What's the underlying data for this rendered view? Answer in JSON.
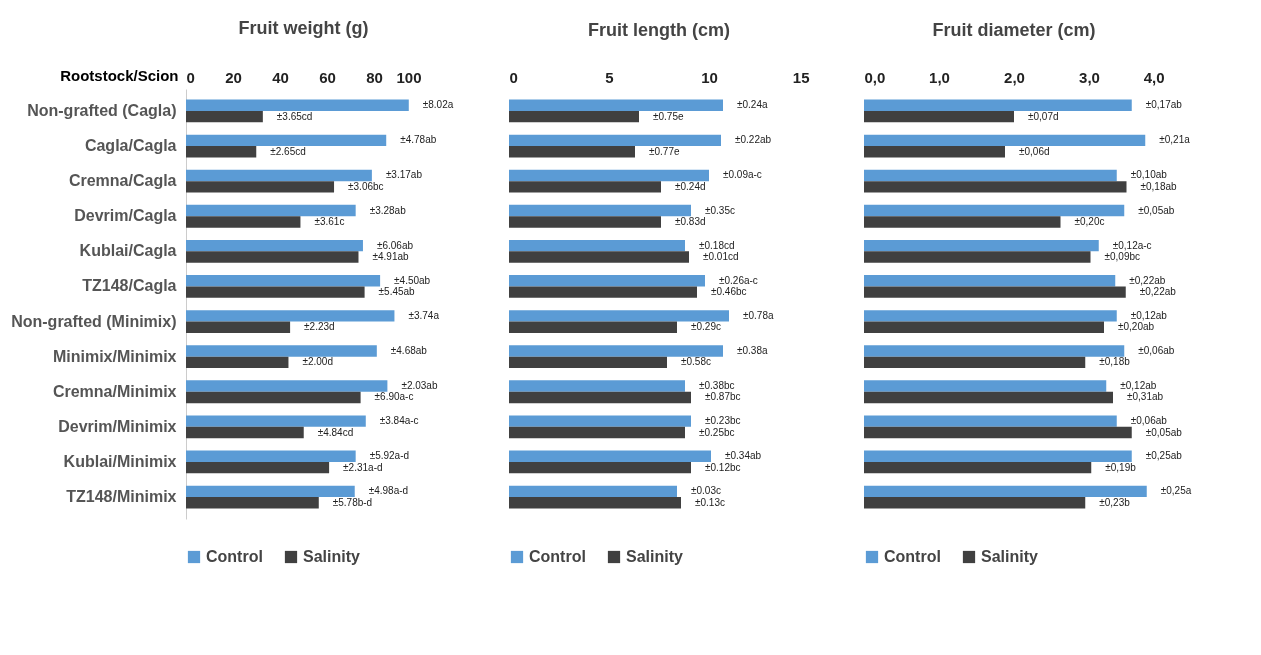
{
  "chart_data": [
    {
      "type": "bar",
      "orientation": "horizontal",
      "title": "Fruit weight (g)",
      "ylabel": "Rootstock/Scion",
      "categories": [
        "Non-grafted (Cagla)",
        "Cagla/Cagla",
        "Cremna/Cagla",
        "Devrim/Cagla",
        "Kublai/Cagla",
        "TZ148/Cagla",
        "Non-grafted (Minimix)",
        "Minimix/Minimix",
        "Cremna/Minimix",
        "Devrim/Minimix",
        "Kublai/Minimix",
        "TZ148/Minimix"
      ],
      "xlim": [
        0,
        100
      ],
      "xticks": [
        0,
        20,
        40,
        60,
        80,
        100
      ],
      "legend": "bottom",
      "series": [
        {
          "name": "Control",
          "color": "#5b9bd5",
          "values": [
            94.8,
            85.2,
            79.1,
            72.2,
            75.3,
            82.6,
            88.7,
            81.2,
            85.7,
            76.5,
            72.2,
            71.8
          ]
        },
        {
          "name": "Salinity",
          "color": "#404040",
          "values": [
            32.7,
            29.9,
            63.0,
            48.7,
            73.4,
            76.0,
            44.3,
            43.6,
            74.3,
            50.1,
            60.9,
            56.5
          ]
        }
      ],
      "annotations": [
        {
          "text": "±8.02a",
          "x": 94.8,
          "y": "Non-grafted (Cagla)"
        },
        {
          "text": "±3.65cd",
          "x": 32.7,
          "y": "Non-grafted (Cagla)"
        },
        {
          "text": "±4.78ab",
          "x": 85.2,
          "y": "Cagla/Cagla"
        },
        {
          "text": "±2.65cd",
          "x": 29.9,
          "y": "Cagla/Cagla"
        },
        {
          "text": "±3.17ab",
          "x": 79.1,
          "y": "Cremna/Cagla"
        },
        {
          "text": "±3.06bc",
          "x": 63.0,
          "y": "Cremna/Cagla"
        },
        {
          "text": "±3.28ab",
          "x": 72.2,
          "y": "Devrim/Cagla"
        },
        {
          "text": "±3.61c",
          "x": 48.7,
          "y": "Devrim/Cagla"
        },
        {
          "text": "±6.06ab",
          "x": 75.3,
          "y": "Kublai/Cagla"
        },
        {
          "text": "±4.91ab",
          "x": 73.4,
          "y": "Kublai/Cagla"
        },
        {
          "text": "±4.50ab",
          "x": 82.6,
          "y": "TZ148/Cagla"
        },
        {
          "text": "±5.45ab",
          "x": 76.0,
          "y": "TZ148/Cagla"
        },
        {
          "text": "±3.74a",
          "x": 88.7,
          "y": "Non-grafted (Minimix)"
        },
        {
          "text": "±2.23d",
          "x": 44.3,
          "y": "Non-grafted (Minimix)"
        },
        {
          "text": "±4.68ab",
          "x": 81.2,
          "y": "Minimix/Minimix"
        },
        {
          "text": "±2.00d",
          "x": 43.6,
          "y": "Minimix/Minimix"
        },
        {
          "text": "±2.03ab",
          "x": 85.7,
          "y": "Cremna/Minimix"
        },
        {
          "text": "±6.90a-c",
          "x": 74.3,
          "y": "Cremna/Minimix"
        },
        {
          "text": "±3.84a-c",
          "x": 76.5,
          "y": "Devrim/Minimix"
        },
        {
          "text": "±4.84cd",
          "x": 50.1,
          "y": "Devrim/Minimix"
        },
        {
          "text": "±5.92a-d",
          "x": 72.2,
          "y": "Kublai/Minimix"
        },
        {
          "text": "±2.31a-d",
          "x": 60.9,
          "y": "Kublai/Minimix"
        },
        {
          "text": "±4.98a-d",
          "x": 71.8,
          "y": "TZ148/Minimix"
        },
        {
          "text": "±5.78b-d",
          "x": 56.5,
          "y": "TZ148/Minimix"
        }
      ]
    },
    {
      "type": "bar",
      "orientation": "horizontal",
      "title": "Fruit length (cm)",
      "categories": [
        "Non-grafted (Cagla)",
        "Cagla/Cagla",
        "Cremna/Cagla",
        "Devrim/Cagla",
        "Kublai/Cagla",
        "TZ148/Cagla",
        "Non-grafted (Minimix)",
        "Minimix/Minimix",
        "Cremna/Minimix",
        "Devrim/Minimix",
        "Kublai/Minimix",
        "TZ148/Minimix"
      ],
      "xlim": [
        0,
        15
      ],
      "xticks": [
        0,
        5,
        10,
        15
      ],
      "legend": "bottom",
      "tick_labels": "x",
      "series": [
        {
          "name": "Control",
          "color": "#5b9bd5",
          "values": [
            10.7,
            10.6,
            10.0,
            9.1,
            8.8,
            9.8,
            11.0,
            10.7,
            8.8,
            9.1,
            10.1,
            8.4
          ]
        },
        {
          "name": "Salinity",
          "color": "#404040",
          "values": [
            6.5,
            6.3,
            7.6,
            7.6,
            9.0,
            9.4,
            8.4,
            7.9,
            9.1,
            8.8,
            9.1,
            8.6
          ]
        }
      ],
      "annotations": [
        {
          "text": "±0.24a",
          "x": 10.7,
          "y": "Non-grafted (Cagla)"
        },
        {
          "text": "±0.75e",
          "x": 6.5,
          "y": "Non-grafted (Cagla)"
        },
        {
          "text": "±0.22ab",
          "x": 10.6,
          "y": "Cagla/Cagla"
        },
        {
          "text": "±0.77e",
          "x": 6.3,
          "y": "Cagla/Cagla"
        },
        {
          "text": "±0.09a-c",
          "x": 10.0,
          "y": "Cremna/Cagla"
        },
        {
          "text": "±0.24d",
          "x": 7.6,
          "y": "Cremna/Cagla"
        },
        {
          "text": "±0.35c",
          "x": 9.1,
          "y": "Devrim/Cagla"
        },
        {
          "text": "±0.83d",
          "x": 7.6,
          "y": "Devrim/Cagla"
        },
        {
          "text": "±0.18cd",
          "x": 8.8,
          "y": "Kublai/Cagla"
        },
        {
          "text": "±0.01cd",
          "x": 9.0,
          "y": "Kublai/Cagla"
        },
        {
          "text": "±0.26a-c",
          "x": 9.8,
          "y": "TZ148/Cagla"
        },
        {
          "text": "±0.46bc",
          "x": 9.4,
          "y": "TZ148/Cagla"
        },
        {
          "text": "±0.78a",
          "x": 11.0,
          "y": "Non-grafted (Minimix)"
        },
        {
          "text": "±0.29c",
          "x": 8.4,
          "y": "Non-grafted (Minimix)"
        },
        {
          "text": "±0.38a",
          "x": 10.7,
          "y": "Minimix/Minimix"
        },
        {
          "text": "±0.58c",
          "x": 7.9,
          "y": "Minimix/Minimix"
        },
        {
          "text": "±0.38bc",
          "x": 8.8,
          "y": "Cremna/Minimix"
        },
        {
          "text": "±0.87bc",
          "x": 9.1,
          "y": "Cremna/Minimix"
        },
        {
          "text": "±0.23bc",
          "x": 9.1,
          "y": "Devrim/Minimix"
        },
        {
          "text": "±0.25bc",
          "x": 8.8,
          "y": "Devrim/Minimix"
        },
        {
          "text": "±0.34ab",
          "x": 10.1,
          "y": "Kublai/Minimix"
        },
        {
          "text": "±0.12bc",
          "x": 9.1,
          "y": "Kublai/Minimix"
        },
        {
          "text": "±0.03c",
          "x": 8.4,
          "y": "TZ148/Minimix"
        },
        {
          "text": "±0.13c",
          "x": 8.6,
          "y": "TZ148/Minimix"
        }
      ]
    },
    {
      "type": "bar",
      "orientation": "horizontal",
      "title": "Fruit diameter (cm)",
      "categories": [
        "Non-grafted (Cagla)",
        "Cagla/Cagla",
        "Cremna/Cagla",
        "Devrim/Cagla",
        "Kublai/Cagla",
        "TZ148/Cagla",
        "Non-grafted (Minimix)",
        "Minimix/Minimix",
        "Cremna/Minimix",
        "Devrim/Minimix",
        "Kublai/Minimix",
        "TZ148/Minimix"
      ],
      "xlim": [
        0,
        4
      ],
      "xticks": [
        {
          "value": 0,
          "label": "0,0"
        },
        {
          "value": 1,
          "label": "1,0"
        },
        {
          "value": 2,
          "label": "2,0"
        },
        {
          "value": 3,
          "label": "3,0"
        },
        {
          "value": 4,
          "label": "4,0"
        }
      ],
      "legend": "bottom",
      "tick_labels": "x",
      "series": [
        {
          "name": "Control",
          "color": "#5b9bd5",
          "values": [
            3.57,
            3.75,
            3.37,
            3.47,
            3.13,
            3.35,
            3.37,
            3.47,
            3.23,
            3.37,
            3.57,
            3.77
          ]
        },
        {
          "name": "Salinity",
          "color": "#404040",
          "values": [
            2.0,
            1.88,
            3.5,
            2.62,
            3.02,
            3.49,
            3.2,
            2.95,
            3.32,
            3.57,
            3.03,
            2.95
          ]
        }
      ],
      "annotations": [
        {
          "text": "±0,17ab",
          "x": 3.57,
          "y": "Non-grafted (Cagla)"
        },
        {
          "text": "±0,07d",
          "x": 2.0,
          "y": "Non-grafted (Cagla)"
        },
        {
          "text": "±0,21a",
          "x": 3.75,
          "y": "Cagla/Cagla"
        },
        {
          "text": "±0,06d",
          "x": 1.88,
          "y": "Cagla/Cagla"
        },
        {
          "text": "±0,10ab",
          "x": 3.37,
          "y": "Cremna/Cagla"
        },
        {
          "text": "±0,18ab",
          "x": 3.5,
          "y": "Cremna/Cagla"
        },
        {
          "text": "±0,05ab",
          "x": 3.47,
          "y": "Devrim/Cagla"
        },
        {
          "text": "±0,20c",
          "x": 2.62,
          "y": "Devrim/Cagla"
        },
        {
          "text": "±0,12a-c",
          "x": 3.13,
          "y": "Kublai/Cagla"
        },
        {
          "text": "±0,09bc",
          "x": 3.02,
          "y": "Kublai/Cagla"
        },
        {
          "text": "±0,22ab",
          "x": 3.35,
          "y": "TZ148/Cagla"
        },
        {
          "text": "±0,22ab",
          "x": 3.49,
          "y": "TZ148/Cagla"
        },
        {
          "text": "±0,12ab",
          "x": 3.37,
          "y": "Non-grafted (Minimix)"
        },
        {
          "text": "±0,20ab",
          "x": 3.2,
          "y": "Non-grafted (Minimix)"
        },
        {
          "text": "±0,06ab",
          "x": 3.47,
          "y": "Minimix/Minimix"
        },
        {
          "text": "±0,18b",
          "x": 2.95,
          "y": "Minimix/Minimix"
        },
        {
          "text": "±0,12ab",
          "x": 3.23,
          "y": "Cremna/Minimix"
        },
        {
          "text": "±0,31ab",
          "x": 3.32,
          "y": "Cremna/Minimix"
        },
        {
          "text": "±0,06ab",
          "x": 3.37,
          "y": "Devrim/Minimix"
        },
        {
          "text": "±0,05ab",
          "x": 3.57,
          "y": "Devrim/Minimix"
        },
        {
          "text": "±0,25ab",
          "x": 3.57,
          "y": "Kublai/Minimix"
        },
        {
          "text": "±0,19b",
          "x": 3.03,
          "y": "Kublai/Minimix"
        },
        {
          "text": "±0,25a",
          "x": 3.77,
          "y": "TZ148/Minimix"
        },
        {
          "text": "±0,23b",
          "x": 2.95,
          "y": "TZ148/Minimix"
        }
      ]
    }
  ]
}
